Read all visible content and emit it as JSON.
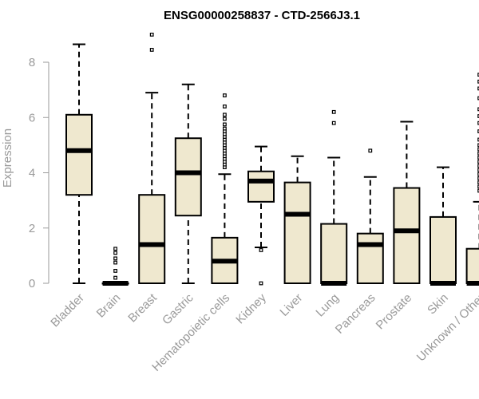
{
  "colors": {
    "box_fill": "#efe8cf",
    "box_stroke": "#000000",
    "axis": "#9a9a9a",
    "title": "#000000"
  },
  "chart_data": {
    "type": "boxplot",
    "title": "ENSG00000258837 - CTD-2566J3.1",
    "xlabel": "",
    "ylabel": "Expression",
    "ylim": [
      0,
      9
    ],
    "yticks": [
      0,
      2,
      4,
      6,
      8
    ],
    "grid": false,
    "categories": [
      "Bladder",
      "Brain",
      "Breast",
      "Gastric",
      "Hematopoietic cells",
      "Kidney",
      "Liver",
      "Lung",
      "Pancreas",
      "Prostate",
      "Skin",
      "Unknown / Other"
    ],
    "boxes": [
      {
        "category": "Bladder",
        "whisker_low": 0.0,
        "q1": 3.2,
        "median": 4.8,
        "q3": 6.1,
        "whisker_high": 8.65,
        "outliers": []
      },
      {
        "category": "Brain",
        "whisker_low": 0.0,
        "q1": 0.0,
        "median": 0.0,
        "q3": 0.0,
        "whisker_high": 0.0,
        "outliers": [
          1.25,
          1.1,
          0.9,
          0.75,
          0.45,
          0.2
        ]
      },
      {
        "category": "Breast",
        "whisker_low": 0.0,
        "q1": 0.0,
        "median": 1.4,
        "q3": 3.2,
        "whisker_high": 6.9,
        "outliers": [
          8.45,
          9.0
        ]
      },
      {
        "category": "Gastric",
        "whisker_low": 0.0,
        "q1": 2.45,
        "median": 4.0,
        "q3": 5.25,
        "whisker_high": 7.2,
        "outliers": []
      },
      {
        "category": "Hematopoietic cells",
        "whisker_low": 0.0,
        "q1": 0.0,
        "median": 0.8,
        "q3": 1.65,
        "whisker_high": 3.95,
        "outliers": [
          4.2,
          4.3,
          4.4,
          4.5,
          4.6,
          4.7,
          4.8,
          4.9,
          5.0,
          5.1,
          5.2,
          5.3,
          5.4,
          5.5,
          5.6,
          5.75,
          5.95,
          6.1,
          6.4,
          6.8
        ]
      },
      {
        "category": "Kidney",
        "whisker_low": 1.3,
        "q1": 2.95,
        "median": 3.7,
        "q3": 4.05,
        "whisker_high": 4.95,
        "outliers": [
          1.2,
          0.0
        ]
      },
      {
        "category": "Liver",
        "whisker_low": 0.0,
        "q1": 0.0,
        "median": 2.5,
        "q3": 3.65,
        "whisker_high": 4.6,
        "outliers": []
      },
      {
        "category": "Lung",
        "whisker_low": 0.0,
        "q1": 0.0,
        "median": 0.0,
        "q3": 2.15,
        "whisker_high": 4.55,
        "outliers": [
          5.8,
          6.2
        ]
      },
      {
        "category": "Pancreas",
        "whisker_low": 0.0,
        "q1": 0.0,
        "median": 1.4,
        "q3": 1.8,
        "whisker_high": 3.85,
        "outliers": [
          4.8
        ]
      },
      {
        "category": "Prostate",
        "whisker_low": 0.0,
        "q1": 0.0,
        "median": 1.9,
        "q3": 3.45,
        "whisker_high": 5.85,
        "outliers": []
      },
      {
        "category": "Skin",
        "whisker_low": 0.0,
        "q1": 0.0,
        "median": 0.0,
        "q3": 2.4,
        "whisker_high": 4.2,
        "outliers": []
      },
      {
        "category": "Unknown / Other",
        "whisker_low": 0.0,
        "q1": 0.0,
        "median": 0.0,
        "q3": 1.25,
        "whisker_high": 2.95,
        "outliers": [
          3.35,
          3.5,
          3.65,
          3.8,
          3.95,
          4.1,
          4.25,
          4.4,
          4.55,
          4.7,
          4.85,
          5.0,
          5.2,
          5.5,
          5.8,
          6.05,
          6.3,
          6.7,
          7.05,
          7.3,
          7.55
        ]
      }
    ]
  }
}
